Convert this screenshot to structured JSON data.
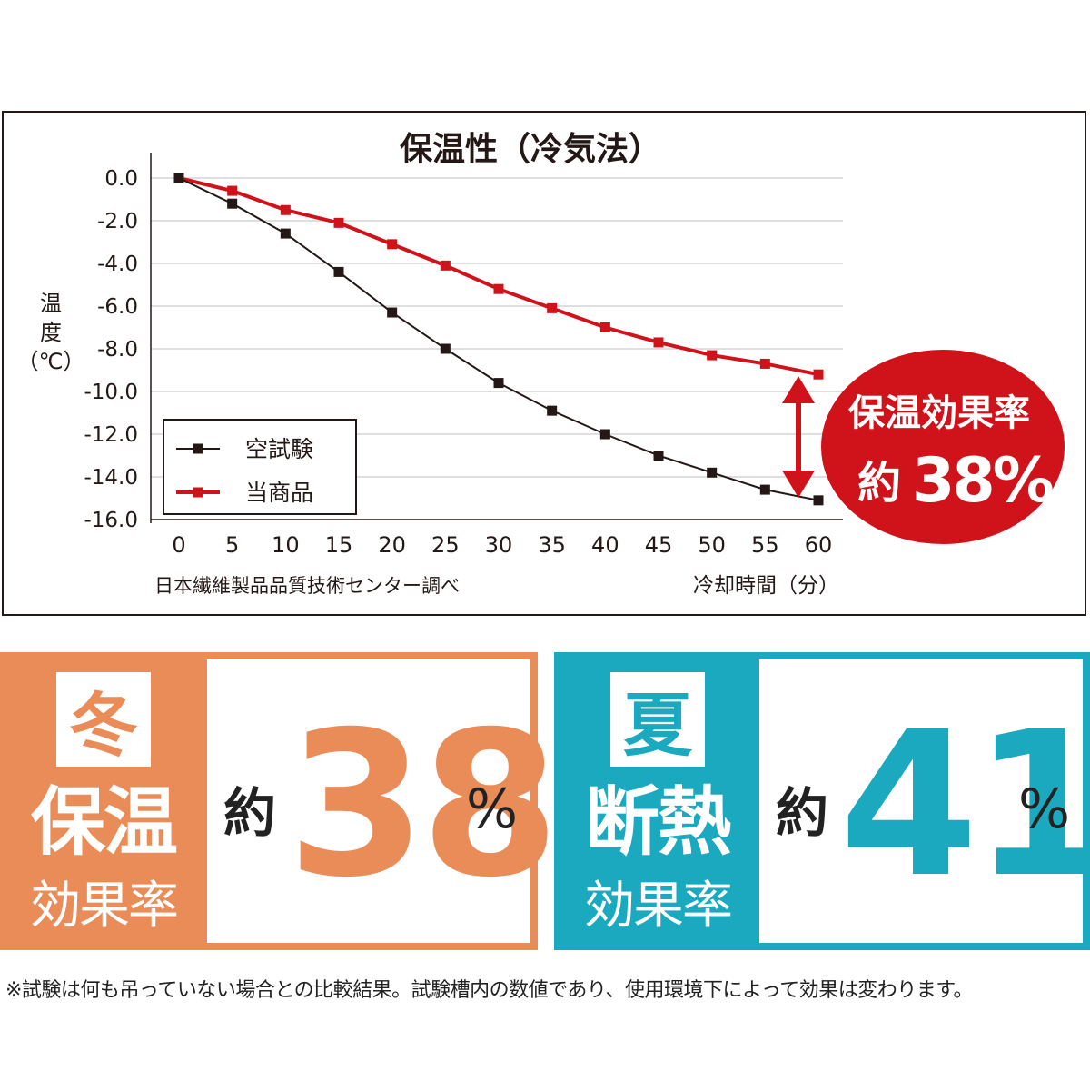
{
  "chart_data": {
    "type": "line",
    "title": "保温性（冷気法）",
    "ylabel": "温度（℃）",
    "xlabel": "冷却時間（分）",
    "source": "日本繊維製品品質技術センター調べ",
    "x": [
      0,
      5,
      10,
      15,
      20,
      25,
      30,
      35,
      40,
      45,
      50,
      55,
      60
    ],
    "y_ticks": [
      "0.0",
      "-2.0",
      "-4.0",
      "-6.0",
      "-8.0",
      "-10.0",
      "-12.0",
      "-14.0",
      "-16.0"
    ],
    "ylim": [
      -16,
      0
    ],
    "xlim": [
      0,
      60
    ],
    "grid": true,
    "legend_position": "bottom-left",
    "series": [
      {
        "name": "空試験",
        "color": "#231815",
        "values": [
          0.0,
          -1.2,
          -2.6,
          -4.4,
          -6.3,
          -8.0,
          -9.6,
          -10.9,
          -12.0,
          -13.0,
          -13.8,
          -14.6,
          -15.1
        ]
      },
      {
        "name": "当商品",
        "color": "#d0121b",
        "values": [
          0.0,
          -0.6,
          -1.5,
          -2.1,
          -3.1,
          -4.1,
          -5.2,
          -6.1,
          -7.0,
          -7.7,
          -8.3,
          -8.7,
          -9.2
        ]
      }
    ],
    "badge": {
      "line1": "保温効果率",
      "line2_prefix": "約",
      "line2_value": "38%",
      "color": "#d0121b"
    }
  },
  "panels": [
    {
      "season": "冬",
      "label_big": "保温",
      "label_small": "効果率",
      "approx": "約",
      "value": "38",
      "unit": "%",
      "color": "#e98c57"
    },
    {
      "season": "夏",
      "label_big": "断熱",
      "label_small": "効果率",
      "approx": "約",
      "value": "41",
      "unit": "%",
      "color": "#1aa9bf"
    }
  ],
  "footnote": "※試験は何も吊っていない場合との比較結果。試験槽内の数値であり、使用環境下によって効果は変わります。"
}
